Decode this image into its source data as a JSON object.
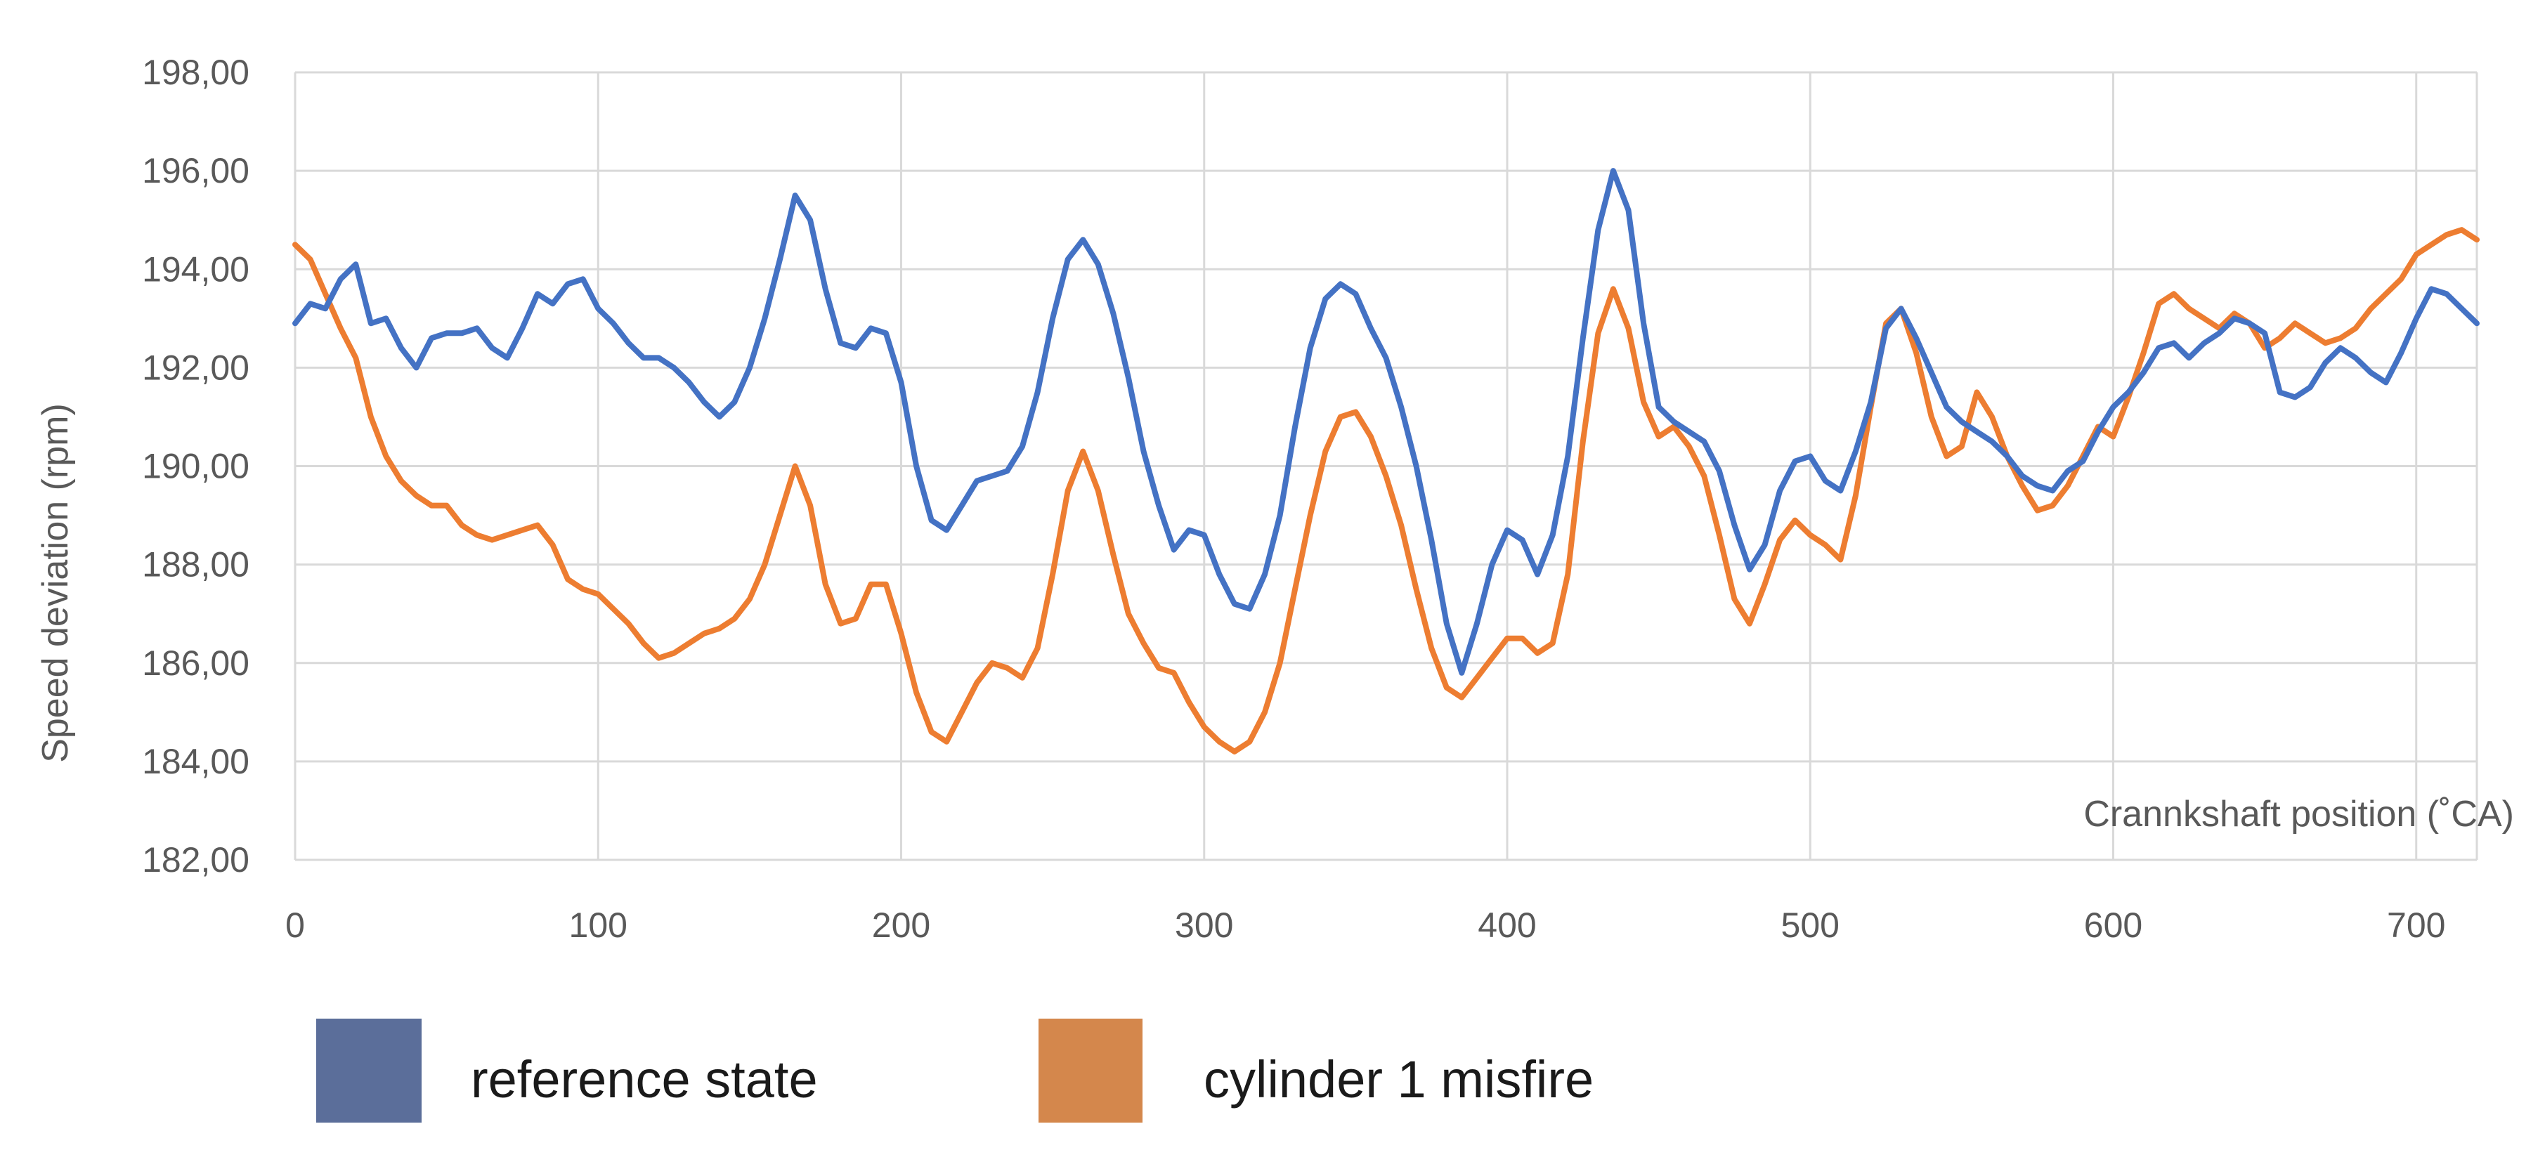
{
  "chart_data": {
    "type": "line",
    "title": "",
    "xlabel": "Crannkshaft position (˚CA)",
    "ylabel": "Speed  deviation (rpm)",
    "xlim": [
      0,
      720
    ],
    "ylim": [
      182,
      198
    ],
    "x_ticks": [
      0,
      100,
      200,
      300,
      400,
      500,
      600,
      700
    ],
    "x_tick_labels": [
      "0",
      "100",
      "200",
      "300",
      "400",
      "500",
      "600",
      "700"
    ],
    "y_ticks": [
      182,
      184,
      186,
      188,
      190,
      192,
      194,
      196,
      198
    ],
    "y_tick_labels": [
      "182,00",
      "184,00",
      "186,00",
      "188,00",
      "190,00",
      "192,00",
      "194,00",
      "196,00",
      "198,00"
    ],
    "grid": true,
    "legend_position": "bottom-left",
    "series": [
      {
        "name": "reference state",
        "color": "#4472c4",
        "points": [
          [
            0,
            192.9
          ],
          [
            5,
            193.3
          ],
          [
            10,
            193.2
          ],
          [
            15,
            193.8
          ],
          [
            20,
            194.1
          ],
          [
            25,
            192.9
          ],
          [
            30,
            193.0
          ],
          [
            35,
            192.4
          ],
          [
            40,
            192.0
          ],
          [
            45,
            192.6
          ],
          [
            50,
            192.7
          ],
          [
            55,
            192.7
          ],
          [
            60,
            192.8
          ],
          [
            65,
            192.4
          ],
          [
            70,
            192.2
          ],
          [
            75,
            192.8
          ],
          [
            80,
            193.5
          ],
          [
            85,
            193.3
          ],
          [
            90,
            193.7
          ],
          [
            95,
            193.8
          ],
          [
            100,
            193.2
          ],
          [
            105,
            192.9
          ],
          [
            110,
            192.5
          ],
          [
            115,
            192.2
          ],
          [
            120,
            192.2
          ],
          [
            125,
            192.0
          ],
          [
            130,
            191.7
          ],
          [
            135,
            191.3
          ],
          [
            140,
            191.0
          ],
          [
            145,
            191.3
          ],
          [
            150,
            192.0
          ],
          [
            155,
            193.0
          ],
          [
            160,
            194.2
          ],
          [
            165,
            195.5
          ],
          [
            170,
            195.0
          ],
          [
            175,
            193.6
          ],
          [
            180,
            192.5
          ],
          [
            185,
            192.4
          ],
          [
            190,
            192.8
          ],
          [
            195,
            192.7
          ],
          [
            200,
            191.7
          ],
          [
            205,
            190.0
          ],
          [
            210,
            188.9
          ],
          [
            215,
            188.7
          ],
          [
            220,
            189.2
          ],
          [
            225,
            189.7
          ],
          [
            230,
            189.8
          ],
          [
            235,
            189.9
          ],
          [
            240,
            190.4
          ],
          [
            245,
            191.5
          ],
          [
            250,
            193.0
          ],
          [
            255,
            194.2
          ],
          [
            260,
            194.6
          ],
          [
            265,
            194.1
          ],
          [
            270,
            193.1
          ],
          [
            275,
            191.8
          ],
          [
            280,
            190.3
          ],
          [
            285,
            189.2
          ],
          [
            290,
            188.3
          ],
          [
            295,
            188.7
          ],
          [
            300,
            188.6
          ],
          [
            305,
            187.8
          ],
          [
            310,
            187.2
          ],
          [
            315,
            187.1
          ],
          [
            320,
            187.8
          ],
          [
            325,
            189.0
          ],
          [
            330,
            190.8
          ],
          [
            335,
            192.4
          ],
          [
            340,
            193.4
          ],
          [
            345,
            193.7
          ],
          [
            350,
            193.5
          ],
          [
            355,
            192.8
          ],
          [
            360,
            192.2
          ],
          [
            365,
            191.2
          ],
          [
            370,
            190.0
          ],
          [
            375,
            188.5
          ],
          [
            380,
            186.8
          ],
          [
            385,
            185.8
          ],
          [
            390,
            186.8
          ],
          [
            395,
            188.0
          ],
          [
            400,
            188.7
          ],
          [
            405,
            188.5
          ],
          [
            410,
            187.8
          ],
          [
            415,
            188.6
          ],
          [
            420,
            190.2
          ],
          [
            425,
            192.6
          ],
          [
            430,
            194.8
          ],
          [
            435,
            196.0
          ],
          [
            440,
            195.2
          ],
          [
            445,
            192.9
          ],
          [
            450,
            191.2
          ],
          [
            455,
            190.9
          ],
          [
            460,
            190.7
          ],
          [
            465,
            190.5
          ],
          [
            470,
            189.9
          ],
          [
            475,
            188.8
          ],
          [
            480,
            187.9
          ],
          [
            485,
            188.4
          ],
          [
            490,
            189.5
          ],
          [
            495,
            190.1
          ],
          [
            500,
            190.2
          ],
          [
            505,
            189.7
          ],
          [
            510,
            189.5
          ],
          [
            515,
            190.3
          ],
          [
            520,
            191.3
          ],
          [
            525,
            192.8
          ],
          [
            530,
            193.2
          ],
          [
            535,
            192.6
          ],
          [
            540,
            191.9
          ],
          [
            545,
            191.2
          ],
          [
            550,
            190.9
          ],
          [
            555,
            190.7
          ],
          [
            560,
            190.5
          ],
          [
            565,
            190.2
          ],
          [
            570,
            189.8
          ],
          [
            575,
            189.6
          ],
          [
            580,
            189.5
          ],
          [
            585,
            189.9
          ],
          [
            590,
            190.1
          ],
          [
            595,
            190.7
          ],
          [
            600,
            191.2
          ],
          [
            605,
            191.5
          ],
          [
            610,
            191.9
          ],
          [
            615,
            192.4
          ],
          [
            620,
            192.5
          ],
          [
            625,
            192.2
          ],
          [
            630,
            192.5
          ],
          [
            635,
            192.7
          ],
          [
            640,
            193.0
          ],
          [
            645,
            192.9
          ],
          [
            650,
            192.7
          ],
          [
            655,
            191.5
          ],
          [
            660,
            191.4
          ],
          [
            665,
            191.6
          ],
          [
            670,
            192.1
          ],
          [
            675,
            192.4
          ],
          [
            680,
            192.2
          ],
          [
            685,
            191.9
          ],
          [
            690,
            191.7
          ],
          [
            695,
            192.3
          ],
          [
            700,
            193.0
          ],
          [
            705,
            193.6
          ],
          [
            710,
            193.5
          ],
          [
            715,
            193.2
          ],
          [
            720,
            192.9
          ]
        ]
      },
      {
        "name": "cylinder 1 misfire",
        "color": "#ed7d31",
        "points": [
          [
            0,
            194.5
          ],
          [
            5,
            194.2
          ],
          [
            10,
            193.5
          ],
          [
            15,
            192.8
          ],
          [
            20,
            192.2
          ],
          [
            25,
            191.0
          ],
          [
            30,
            190.2
          ],
          [
            35,
            189.7
          ],
          [
            40,
            189.4
          ],
          [
            45,
            189.2
          ],
          [
            50,
            189.2
          ],
          [
            55,
            188.8
          ],
          [
            60,
            188.6
          ],
          [
            65,
            188.5
          ],
          [
            70,
            188.6
          ],
          [
            75,
            188.7
          ],
          [
            80,
            188.8
          ],
          [
            85,
            188.4
          ],
          [
            90,
            187.7
          ],
          [
            95,
            187.5
          ],
          [
            100,
            187.4
          ],
          [
            105,
            187.1
          ],
          [
            110,
            186.8
          ],
          [
            115,
            186.4
          ],
          [
            120,
            186.1
          ],
          [
            125,
            186.2
          ],
          [
            130,
            186.4
          ],
          [
            135,
            186.6
          ],
          [
            140,
            186.7
          ],
          [
            145,
            186.9
          ],
          [
            150,
            187.3
          ],
          [
            155,
            188.0
          ],
          [
            160,
            189.0
          ],
          [
            165,
            190.0
          ],
          [
            170,
            189.2
          ],
          [
            175,
            187.6
          ],
          [
            180,
            186.8
          ],
          [
            185,
            186.9
          ],
          [
            190,
            187.6
          ],
          [
            195,
            187.6
          ],
          [
            200,
            186.6
          ],
          [
            205,
            185.4
          ],
          [
            210,
            184.6
          ],
          [
            215,
            184.4
          ],
          [
            220,
            185.0
          ],
          [
            225,
            185.6
          ],
          [
            230,
            186.0
          ],
          [
            235,
            185.9
          ],
          [
            240,
            185.7
          ],
          [
            245,
            186.3
          ],
          [
            250,
            187.8
          ],
          [
            255,
            189.5
          ],
          [
            260,
            190.3
          ],
          [
            265,
            189.5
          ],
          [
            270,
            188.2
          ],
          [
            275,
            187.0
          ],
          [
            280,
            186.4
          ],
          [
            285,
            185.9
          ],
          [
            290,
            185.8
          ],
          [
            295,
            185.2
          ],
          [
            300,
            184.7
          ],
          [
            305,
            184.4
          ],
          [
            310,
            184.2
          ],
          [
            315,
            184.4
          ],
          [
            320,
            185.0
          ],
          [
            325,
            186.0
          ],
          [
            330,
            187.5
          ],
          [
            335,
            189.0
          ],
          [
            340,
            190.3
          ],
          [
            345,
            191.0
          ],
          [
            350,
            191.1
          ],
          [
            355,
            190.6
          ],
          [
            360,
            189.8
          ],
          [
            365,
            188.8
          ],
          [
            370,
            187.5
          ],
          [
            375,
            186.3
          ],
          [
            380,
            185.5
          ],
          [
            385,
            185.3
          ],
          [
            390,
            185.7
          ],
          [
            395,
            186.1
          ],
          [
            400,
            186.5
          ],
          [
            405,
            186.5
          ],
          [
            410,
            186.2
          ],
          [
            415,
            186.4
          ],
          [
            420,
            187.8
          ],
          [
            425,
            190.5
          ],
          [
            430,
            192.7
          ],
          [
            435,
            193.6
          ],
          [
            440,
            192.8
          ],
          [
            445,
            191.3
          ],
          [
            450,
            190.6
          ],
          [
            455,
            190.8
          ],
          [
            460,
            190.4
          ],
          [
            465,
            189.8
          ],
          [
            470,
            188.6
          ],
          [
            475,
            187.3
          ],
          [
            480,
            186.8
          ],
          [
            485,
            187.6
          ],
          [
            490,
            188.5
          ],
          [
            495,
            188.9
          ],
          [
            500,
            188.6
          ],
          [
            505,
            188.4
          ],
          [
            510,
            188.1
          ],
          [
            515,
            189.4
          ],
          [
            520,
            191.2
          ],
          [
            525,
            192.9
          ],
          [
            530,
            193.2
          ],
          [
            535,
            192.3
          ],
          [
            540,
            191.0
          ],
          [
            545,
            190.2
          ],
          [
            550,
            190.4
          ],
          [
            555,
            191.5
          ],
          [
            560,
            191.0
          ],
          [
            565,
            190.2
          ],
          [
            570,
            189.6
          ],
          [
            575,
            189.1
          ],
          [
            580,
            189.2
          ],
          [
            585,
            189.6
          ],
          [
            590,
            190.2
          ],
          [
            595,
            190.8
          ],
          [
            600,
            190.6
          ],
          [
            605,
            191.4
          ],
          [
            610,
            192.3
          ],
          [
            615,
            193.3
          ],
          [
            620,
            193.5
          ],
          [
            625,
            193.2
          ],
          [
            630,
            193.0
          ],
          [
            635,
            192.8
          ],
          [
            640,
            193.1
          ],
          [
            645,
            192.9
          ],
          [
            650,
            192.4
          ],
          [
            655,
            192.6
          ],
          [
            660,
            192.9
          ],
          [
            665,
            192.7
          ],
          [
            670,
            192.5
          ],
          [
            675,
            192.6
          ],
          [
            680,
            192.8
          ],
          [
            685,
            193.2
          ],
          [
            690,
            193.5
          ],
          [
            695,
            193.8
          ],
          [
            700,
            194.3
          ],
          [
            705,
            194.5
          ],
          [
            710,
            194.7
          ],
          [
            715,
            194.8
          ],
          [
            720,
            194.6
          ]
        ]
      }
    ]
  }
}
